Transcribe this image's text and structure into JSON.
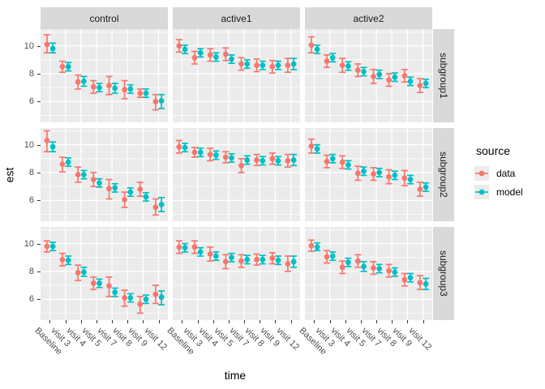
{
  "chart_data": {
    "type": "scatter",
    "subtype": "pointrange_with_errorbars",
    "title": "",
    "xlabel": "time",
    "ylabel": "est",
    "categories": [
      "Baseline",
      "visit 3",
      "visit 4",
      "visit 5",
      "visit 7",
      "visit 8",
      "visit 9",
      "visit 12"
    ],
    "facet_cols": [
      "control",
      "active1",
      "active2"
    ],
    "facet_rows": [
      "subgroup1",
      "subgroup2",
      "subgroup3"
    ],
    "yticks": [
      6,
      8,
      10
    ],
    "minor_yticks": [
      5,
      7,
      9,
      11
    ],
    "ylim": [
      4.5,
      11.2
    ],
    "grid": true,
    "panel_bg": "#ebebeb",
    "strip_bg": "#d9d9d9",
    "grid_color": "#ffffff",
    "tick_color": "#333333",
    "legend": {
      "title": "source",
      "position": "right",
      "entries": [
        {
          "label": "data",
          "color": "#F8766D"
        },
        {
          "label": "model",
          "color": "#00BFC4"
        }
      ]
    },
    "panels": [
      {
        "facet_col": "control",
        "facet_row": "subgroup1",
        "series": [
          {
            "name": "data",
            "est": [
              10.1,
              8.5,
              7.4,
              7.05,
              7.15,
              6.85,
              6.6,
              6.0
            ],
            "lo": [
              9.5,
              8.1,
              6.9,
              6.6,
              6.5,
              6.2,
              6.3,
              5.4
            ],
            "hi": [
              10.8,
              8.9,
              7.9,
              7.5,
              7.8,
              7.5,
              6.9,
              6.5
            ]
          },
          {
            "name": "model",
            "est": [
              9.8,
              8.5,
              7.45,
              7.0,
              6.95,
              6.9,
              6.6,
              6.05
            ],
            "lo": [
              9.5,
              8.2,
              7.1,
              6.7,
              6.6,
              6.6,
              6.3,
              5.5
            ],
            "hi": [
              10.2,
              8.8,
              7.8,
              7.3,
              7.3,
              7.2,
              6.9,
              6.5
            ]
          }
        ]
      },
      {
        "facet_col": "active1",
        "facet_row": "subgroup1",
        "series": [
          {
            "name": "data",
            "est": [
              10.0,
              9.15,
              9.35,
              9.4,
              8.7,
              8.6,
              8.5,
              8.6
            ],
            "lo": [
              9.55,
              8.7,
              8.9,
              8.95,
              8.25,
              8.15,
              8.05,
              8.1
            ],
            "hi": [
              10.45,
              9.6,
              9.8,
              9.85,
              9.15,
              9.05,
              8.95,
              9.1
            ]
          },
          {
            "name": "model",
            "est": [
              9.75,
              9.5,
              9.2,
              9.05,
              8.7,
              8.6,
              8.6,
              8.7
            ],
            "lo": [
              9.45,
              9.2,
              8.9,
              8.75,
              8.4,
              8.3,
              8.3,
              8.3
            ],
            "hi": [
              10.05,
              9.8,
              9.5,
              9.35,
              9.0,
              8.9,
              8.9,
              9.1
            ]
          }
        ]
      },
      {
        "facet_col": "active2",
        "facet_row": "subgroup1",
        "series": [
          {
            "name": "data",
            "est": [
              10.05,
              8.9,
              8.6,
              8.25,
              7.8,
              7.55,
              7.85,
              7.15
            ],
            "lo": [
              9.5,
              8.45,
              8.1,
              7.8,
              7.3,
              7.1,
              7.4,
              6.65
            ],
            "hi": [
              10.65,
              9.35,
              9.1,
              8.7,
              8.3,
              8.0,
              8.3,
              7.65
            ]
          },
          {
            "name": "model",
            "est": [
              9.75,
              9.15,
              8.55,
              8.15,
              7.95,
              7.75,
              7.45,
              7.3
            ],
            "lo": [
              9.45,
              8.85,
              8.25,
              7.85,
              7.65,
              7.45,
              7.15,
              7.0
            ],
            "hi": [
              10.05,
              9.45,
              8.85,
              8.45,
              8.25,
              8.05,
              7.75,
              7.6
            ]
          }
        ]
      },
      {
        "facet_col": "control",
        "facet_row": "subgroup2",
        "series": [
          {
            "name": "data",
            "est": [
              10.3,
              8.6,
              7.85,
              7.5,
              6.85,
              6.05,
              6.8,
              5.5
            ],
            "lo": [
              9.5,
              8.05,
              7.3,
              7.0,
              6.1,
              5.5,
              6.3,
              4.95
            ],
            "hi": [
              11.0,
              9.1,
              8.4,
              8.0,
              7.5,
              6.6,
              7.3,
              6.1
            ]
          },
          {
            "name": "model",
            "est": [
              9.85,
              8.75,
              7.85,
              7.25,
              6.9,
              6.6,
              6.25,
              5.7
            ],
            "lo": [
              9.5,
              8.45,
              7.55,
              6.95,
              6.6,
              6.3,
              5.95,
              5.2
            ],
            "hi": [
              10.2,
              9.05,
              8.15,
              7.55,
              7.2,
              6.9,
              6.55,
              6.2
            ]
          }
        ]
      },
      {
        "facet_col": "active1",
        "facet_row": "subgroup2",
        "series": [
          {
            "name": "data",
            "est": [
              9.85,
              9.45,
              9.3,
              9.1,
              8.5,
              8.9,
              9.0,
              8.85
            ],
            "lo": [
              9.4,
              9.1,
              8.85,
              8.7,
              8.0,
              8.5,
              8.6,
              8.4
            ],
            "hi": [
              10.3,
              9.8,
              9.75,
              9.5,
              9.0,
              9.3,
              9.4,
              9.3
            ]
          },
          {
            "name": "model",
            "est": [
              9.8,
              9.45,
              9.25,
              9.05,
              8.9,
              8.85,
              8.85,
              8.9
            ],
            "lo": [
              9.5,
              9.15,
              8.95,
              8.75,
              8.6,
              8.55,
              8.55,
              8.5
            ],
            "hi": [
              10.1,
              9.75,
              9.55,
              9.35,
              9.2,
              9.15,
              9.15,
              9.3
            ]
          }
        ]
      },
      {
        "facet_col": "active2",
        "facet_row": "subgroup2",
        "series": [
          {
            "name": "data",
            "est": [
              9.9,
              8.8,
              8.75,
              7.95,
              7.9,
              7.7,
              7.6,
              6.8
            ],
            "lo": [
              9.4,
              8.35,
              8.3,
              7.45,
              7.45,
              7.2,
              7.05,
              6.3
            ],
            "hi": [
              10.4,
              9.25,
              9.2,
              8.45,
              8.35,
              8.2,
              8.15,
              7.3
            ]
          },
          {
            "name": "model",
            "est": [
              9.7,
              9.0,
              8.55,
              8.1,
              8.0,
              7.8,
              7.5,
              6.95
            ],
            "lo": [
              9.4,
              8.7,
              8.25,
              7.8,
              7.7,
              7.5,
              7.2,
              6.65
            ],
            "hi": [
              10.0,
              9.3,
              8.85,
              8.4,
              8.3,
              8.1,
              7.8,
              7.25
            ]
          }
        ]
      },
      {
        "facet_col": "control",
        "facet_row": "subgroup3",
        "series": [
          {
            "name": "data",
            "est": [
              9.8,
              8.85,
              7.9,
              7.15,
              6.95,
              6.1,
              5.65,
              6.35
            ],
            "lo": [
              9.4,
              8.4,
              7.35,
              6.7,
              6.2,
              5.5,
              5.0,
              5.7
            ],
            "hi": [
              10.2,
              9.3,
              8.45,
              7.6,
              7.6,
              6.65,
              6.2,
              7.0
            ]
          },
          {
            "name": "model",
            "est": [
              9.8,
              8.8,
              7.95,
              7.15,
              6.5,
              6.1,
              6.0,
              6.15
            ],
            "lo": [
              9.5,
              8.5,
              7.65,
              6.85,
              6.2,
              5.8,
              5.7,
              5.6
            ],
            "hi": [
              10.1,
              9.1,
              8.3,
              7.45,
              6.8,
              6.4,
              6.3,
              6.6
            ]
          }
        ]
      },
      {
        "facet_col": "active1",
        "facet_row": "subgroup3",
        "series": [
          {
            "name": "data",
            "est": [
              9.75,
              9.75,
              9.25,
              8.7,
              8.75,
              8.85,
              8.95,
              8.55
            ],
            "lo": [
              9.3,
              9.3,
              8.75,
              8.2,
              8.3,
              8.45,
              8.55,
              8.0
            ],
            "hi": [
              10.2,
              10.2,
              9.75,
              9.2,
              9.2,
              9.25,
              9.35,
              9.1
            ]
          },
          {
            "name": "model",
            "est": [
              9.7,
              9.4,
              9.1,
              9.0,
              8.85,
              8.85,
              8.8,
              8.7
            ],
            "lo": [
              9.4,
              9.1,
              8.8,
              8.7,
              8.55,
              8.55,
              8.5,
              8.3
            ],
            "hi": [
              10.0,
              9.7,
              9.4,
              9.3,
              9.15,
              9.15,
              9.1,
              9.1
            ]
          }
        ]
      },
      {
        "facet_col": "active2",
        "facet_row": "subgroup3",
        "series": [
          {
            "name": "data",
            "est": [
              9.85,
              9.05,
              8.3,
              8.75,
              8.25,
              8.05,
              7.4,
              7.2
            ],
            "lo": [
              9.45,
              8.6,
              7.85,
              8.3,
              7.8,
              7.6,
              6.95,
              6.7
            ],
            "hi": [
              10.25,
              9.5,
              8.75,
              9.2,
              8.7,
              8.5,
              7.85,
              7.7
            ]
          },
          {
            "name": "model",
            "est": [
              9.75,
              9.1,
              8.65,
              8.35,
              8.2,
              7.95,
              7.55,
              7.1
            ],
            "lo": [
              9.5,
              8.8,
              8.35,
              8.0,
              7.9,
              7.65,
              7.25,
              6.7
            ],
            "hi": [
              10.05,
              9.4,
              8.95,
              8.7,
              8.5,
              8.25,
              7.85,
              7.5
            ]
          }
        ]
      }
    ]
  }
}
